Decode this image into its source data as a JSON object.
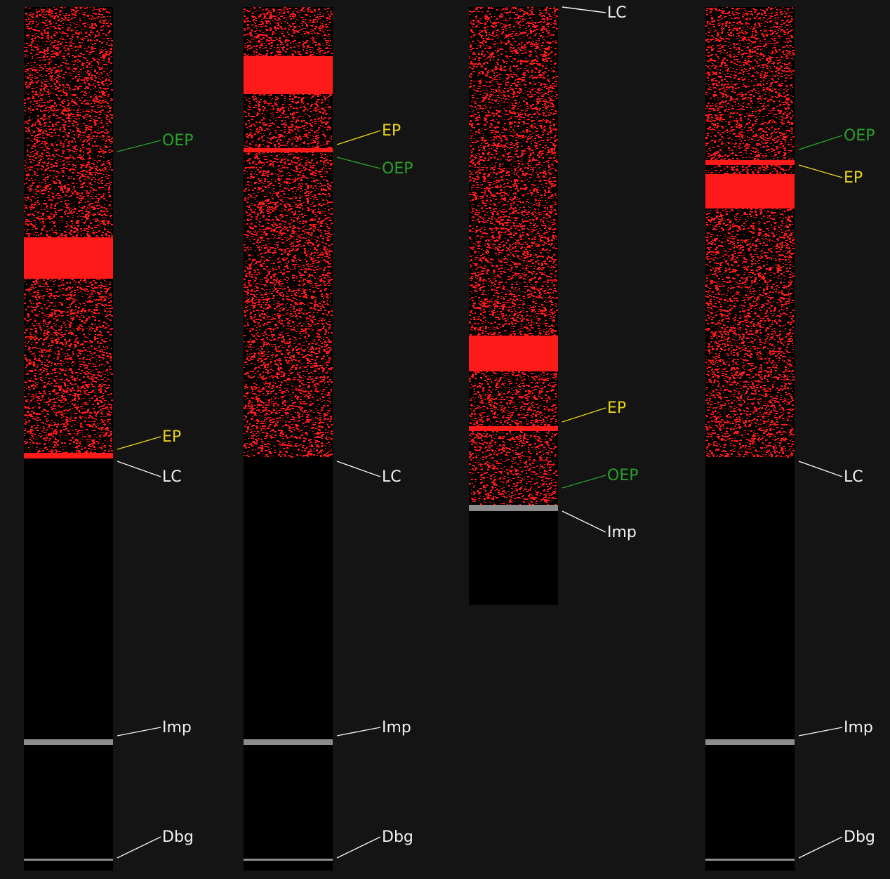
{
  "colors": {
    "background": "#141414",
    "column": "#000000",
    "code_pixel": "#ff1a1a",
    "dense_band": "#ff1a1a",
    "marker_gray": "#8c8c8c",
    "label_oep": "#2aa02a",
    "label_ep": "#e8d219",
    "label_default": "#f2f2f2"
  },
  "columns": [
    {
      "id": "col1",
      "labels": [
        {
          "key": "oep",
          "text": "OEP",
          "kind": "oep"
        },
        {
          "key": "ep",
          "text": "EP",
          "kind": "ep"
        },
        {
          "key": "lc",
          "text": "LC",
          "kind": "default"
        },
        {
          "key": "imp",
          "text": "Imp",
          "kind": "default"
        },
        {
          "key": "dbg",
          "text": "Dbg",
          "kind": "default"
        }
      ]
    },
    {
      "id": "col2",
      "labels": [
        {
          "key": "ep",
          "text": "EP",
          "kind": "ep"
        },
        {
          "key": "oep",
          "text": "OEP",
          "kind": "oep"
        },
        {
          "key": "lc",
          "text": "LC",
          "kind": "default"
        },
        {
          "key": "imp",
          "text": "Imp",
          "kind": "default"
        },
        {
          "key": "dbg",
          "text": "Dbg",
          "kind": "default"
        }
      ]
    },
    {
      "id": "col3",
      "labels": [
        {
          "key": "lc",
          "text": "LC",
          "kind": "default"
        },
        {
          "key": "ep",
          "text": "EP",
          "kind": "ep"
        },
        {
          "key": "oep",
          "text": "OEP",
          "kind": "oep"
        },
        {
          "key": "imp",
          "text": "Imp",
          "kind": "default"
        }
      ]
    },
    {
      "id": "col4",
      "labels": [
        {
          "key": "oep",
          "text": "OEP",
          "kind": "oep"
        },
        {
          "key": "ep",
          "text": "EP",
          "kind": "ep"
        },
        {
          "key": "lc",
          "text": "LC",
          "kind": "default"
        },
        {
          "key": "imp",
          "text": "Imp",
          "kind": "default"
        },
        {
          "key": "dbg",
          "text": "Dbg",
          "kind": "default"
        }
      ]
    }
  ]
}
